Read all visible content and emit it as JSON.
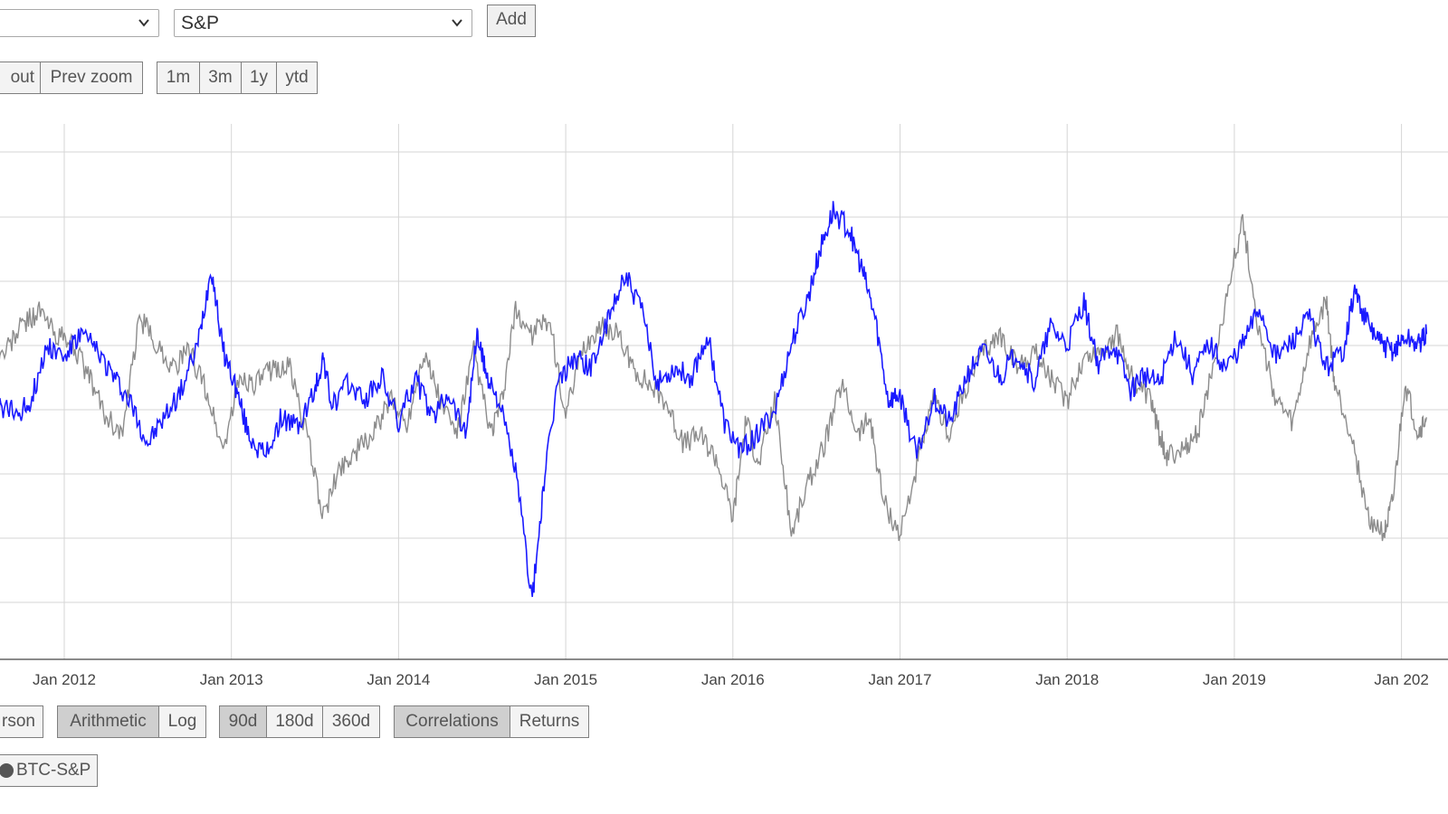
{
  "controls": {
    "series_a_select": {
      "value": ""
    },
    "series_b_select": {
      "value": "S&P"
    },
    "add_button": "Add",
    "zoom_out": "out",
    "prev_zoom": "Prev zoom",
    "ranges": [
      "1m",
      "3m",
      "1y",
      "ytd"
    ]
  },
  "bottom": {
    "method_label": "rson",
    "scale": [
      {
        "label": "Arithmetic",
        "active": true
      },
      {
        "label": "Log",
        "active": false
      }
    ],
    "window": [
      {
        "label": "90d",
        "active": true
      },
      {
        "label": "180d",
        "active": false
      },
      {
        "label": "360d",
        "active": false
      }
    ],
    "view": [
      {
        "label": "Correlations",
        "active": true
      },
      {
        "label": "Returns",
        "active": false
      }
    ]
  },
  "legend": {
    "label": "BTC-S&P"
  },
  "colors": {
    "blue_series": "#1a1aff",
    "gray_series": "#8c8c8c",
    "grid": "#d6d6d6",
    "active_button": "#cfcfcf"
  },
  "chart_data": {
    "type": "line",
    "x_axis": "time",
    "x_ticks": [
      "Jan 2012",
      "Jan 2013",
      "Jan 2014",
      "Jan 2015",
      "Jan 2016",
      "Jan 2017",
      "Jan 2018",
      "Jan 2019",
      "Jan 202"
    ],
    "y_ticks_visible": false,
    "grid": true,
    "series": [
      {
        "color": "#1a1aff",
        "t": [
          2011.55,
          2011.62,
          2011.72,
          2011.8,
          2011.9,
          2012.0,
          2012.1,
          2012.2,
          2012.3,
          2012.4,
          2012.5,
          2012.6,
          2012.7,
          2012.8,
          2012.88,
          2012.95,
          2013.02,
          2013.1,
          2013.2,
          2013.3,
          2013.4,
          2013.5,
          2013.55,
          2013.6,
          2013.7,
          2013.8,
          2013.9,
          2014.0,
          2014.1,
          2014.2,
          2014.3,
          2014.4,
          2014.47,
          2014.52,
          2014.6,
          2014.7,
          2014.8,
          2014.87,
          2014.95,
          2015.05,
          2015.15,
          2015.25,
          2015.35,
          2015.45,
          2015.55,
          2015.65,
          2015.75,
          2015.85,
          2015.95,
          2016.05,
          2016.15,
          2016.25,
          2016.35,
          2016.45,
          2016.52,
          2016.6,
          2016.7,
          2016.78,
          2016.85,
          2016.93,
          2017.0,
          2017.1,
          2017.2,
          2017.3,
          2017.4,
          2017.5,
          2017.6,
          2017.7,
          2017.8,
          2017.9,
          2018.0,
          2018.1,
          2018.18,
          2018.28,
          2018.38,
          2018.45,
          2018.55,
          2018.65,
          2018.75,
          2018.85,
          2018.95,
          2019.05,
          2019.15,
          2019.25,
          2019.35,
          2019.45,
          2019.55,
          2019.65,
          2019.72,
          2019.8,
          2019.88,
          2019.95,
          2020.02,
          2020.1,
          2020.15
        ],
        "y": [
          0.02,
          0.03,
          0.01,
          0.05,
          0.22,
          0.18,
          0.25,
          0.2,
          0.12,
          0.04,
          -0.08,
          0.0,
          0.08,
          0.22,
          0.45,
          0.2,
          0.1,
          -0.05,
          -0.12,
          0.0,
          -0.03,
          0.08,
          0.18,
          0.03,
          0.1,
          0.05,
          0.12,
          -0.02,
          0.12,
          0.0,
          0.08,
          -0.05,
          0.25,
          0.14,
          0.05,
          -0.16,
          -0.55,
          -0.2,
          0.1,
          0.18,
          0.15,
          0.28,
          0.43,
          0.33,
          0.1,
          0.15,
          0.12,
          0.25,
          -0.02,
          -0.1,
          -0.05,
          0.02,
          0.22,
          0.36,
          0.5,
          0.62,
          0.56,
          0.43,
          0.3,
          0.05,
          0.07,
          -0.12,
          0.06,
          -0.02,
          0.13,
          0.2,
          0.12,
          0.2,
          0.1,
          0.27,
          0.22,
          0.35,
          0.16,
          0.22,
          0.08,
          0.13,
          0.1,
          0.25,
          0.13,
          0.22,
          0.15,
          0.22,
          0.33,
          0.18,
          0.23,
          0.3,
          0.15,
          0.2,
          0.38,
          0.28,
          0.22,
          0.2,
          0.24,
          0.22,
          0.25
        ]
      },
      {
        "color": "#8c8c8c",
        "t": [
          2011.55,
          2011.65,
          2011.75,
          2011.85,
          2011.95,
          2012.05,
          2012.15,
          2012.25,
          2012.35,
          2012.45,
          2012.55,
          2012.65,
          2012.75,
          2012.85,
          2012.95,
          2013.05,
          2013.15,
          2013.25,
          2013.35,
          2013.45,
          2013.55,
          2013.65,
          2013.75,
          2013.85,
          2013.95,
          2014.05,
          2014.15,
          2014.25,
          2014.35,
          2014.45,
          2014.55,
          2014.62,
          2014.7,
          2014.8,
          2014.9,
          2015.0,
          2015.1,
          2015.2,
          2015.3,
          2015.4,
          2015.5,
          2015.6,
          2015.7,
          2015.8,
          2015.9,
          2016.0,
          2016.08,
          2016.15,
          2016.25,
          2016.35,
          2016.45,
          2016.55,
          2016.65,
          2016.75,
          2016.82,
          2016.9,
          2017.0,
          2017.1,
          2017.2,
          2017.3,
          2017.4,
          2017.5,
          2017.6,
          2017.7,
          2017.8,
          2017.9,
          2018.0,
          2018.1,
          2018.2,
          2018.3,
          2018.4,
          2018.5,
          2018.55,
          2018.6,
          2018.7,
          2018.78,
          2018.85,
          2018.95,
          2019.05,
          2019.15,
          2019.25,
          2019.35,
          2019.45,
          2019.55,
          2019.6,
          2019.7,
          2019.8,
          2019.9,
          2019.95,
          2020.02,
          2020.1,
          2020.15
        ],
        "y": [
          0.15,
          0.2,
          0.28,
          0.32,
          0.25,
          0.22,
          0.12,
          0.0,
          -0.05,
          0.3,
          0.22,
          0.15,
          0.2,
          0.08,
          -0.1,
          0.12,
          0.1,
          0.15,
          0.15,
          -0.05,
          -0.3,
          -0.15,
          -0.1,
          -0.05,
          0.05,
          -0.02,
          0.2,
          0.05,
          -0.05,
          0.2,
          -0.05,
          0.05,
          0.32,
          0.25,
          0.3,
          0.0,
          0.2,
          0.27,
          0.26,
          0.15,
          0.1,
          0.05,
          -0.08,
          -0.05,
          -0.12,
          -0.3,
          0.0,
          -0.15,
          0.05,
          -0.35,
          -0.2,
          -0.08,
          0.1,
          -0.05,
          0.0,
          -0.25,
          -0.35,
          -0.15,
          0.05,
          -0.05,
          0.1,
          0.2,
          0.25,
          0.15,
          0.2,
          0.12,
          0.05,
          0.18,
          0.2,
          0.25,
          0.1,
          0.05,
          -0.05,
          -0.12,
          -0.1,
          -0.05,
          0.1,
          0.35,
          0.6,
          0.25,
          0.05,
          -0.02,
          0.22,
          0.35,
          0.1,
          -0.05,
          -0.3,
          -0.35,
          -0.25,
          0.1,
          -0.05,
          0.0
        ]
      }
    ]
  }
}
